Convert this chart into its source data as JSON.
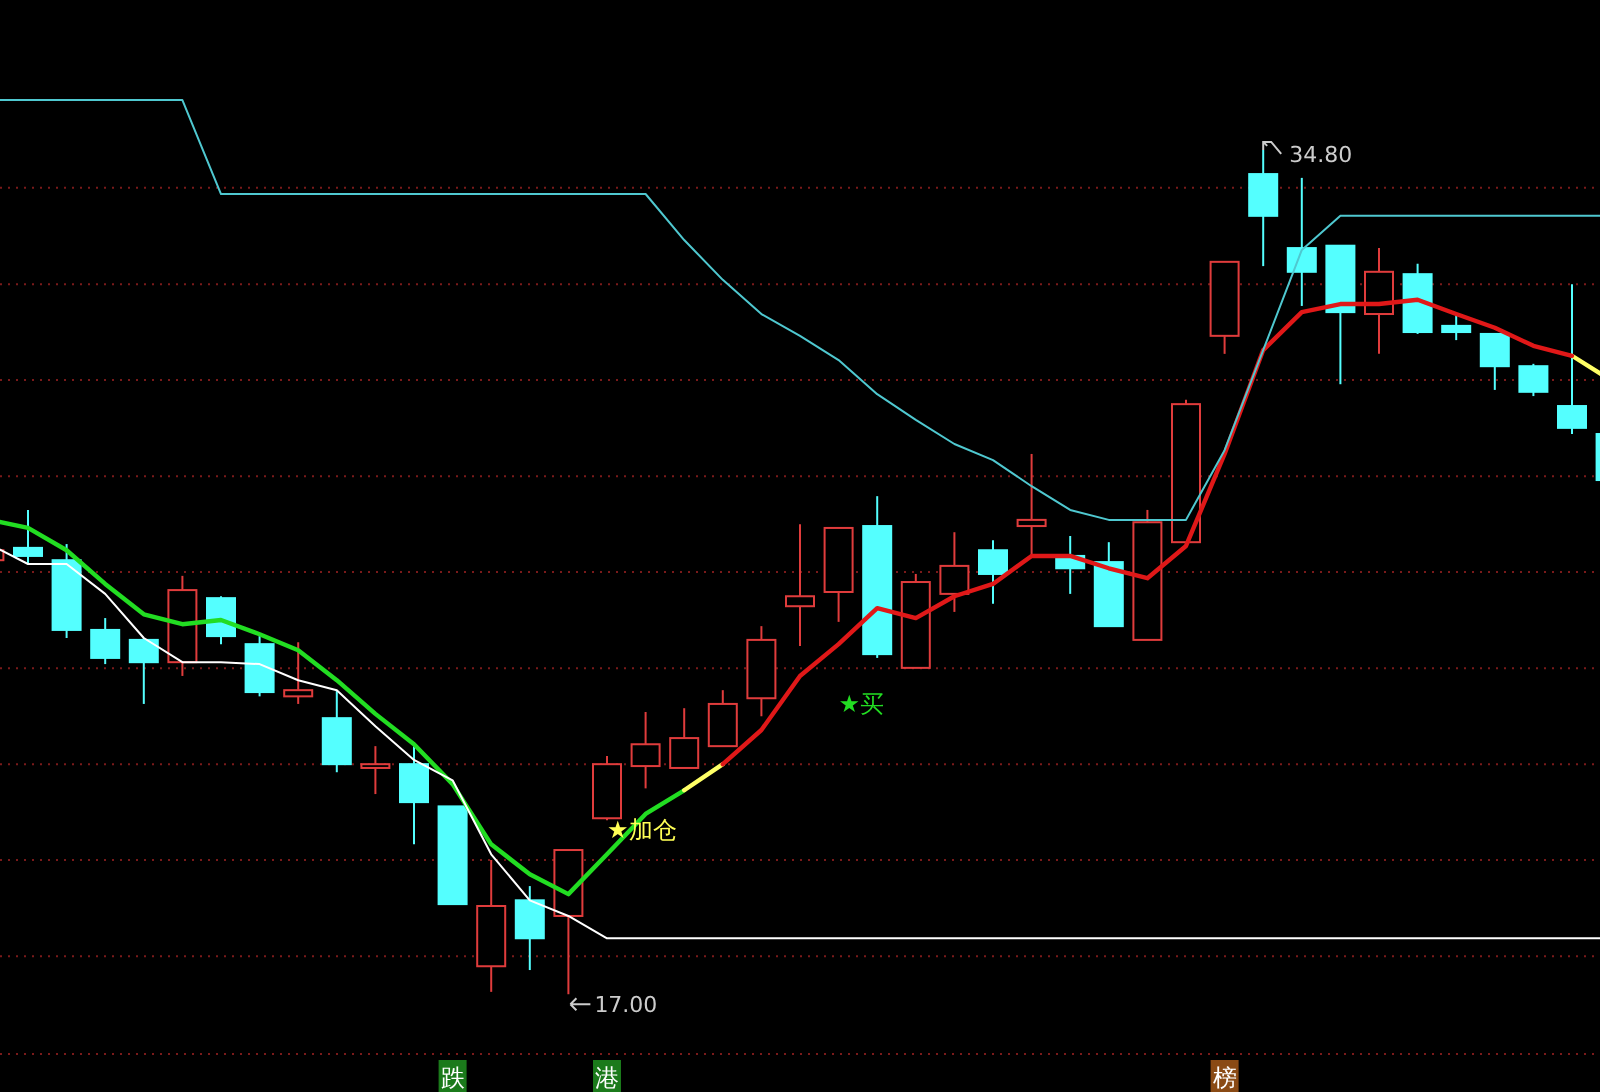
{
  "chart_data": {
    "type": "candlestick",
    "categories": [
      null,
      null,
      null,
      null,
      null,
      null,
      null,
      null,
      null,
      null,
      null,
      null,
      null,
      null,
      null,
      null,
      null,
      null,
      null,
      null,
      null,
      null,
      null,
      null,
      null,
      null,
      null,
      null,
      null,
      null,
      null,
      null,
      null,
      null,
      null,
      null,
      null,
      null,
      null,
      null,
      null,
      null,
      null
    ],
    "ohlc": [
      [
        26.15,
        26.36,
        26.15,
        26.36
      ],
      [
        26.41,
        27.21,
        26.07,
        26.24
      ],
      [
        26.15,
        26.49,
        24.51,
        24.68
      ],
      [
        24.68,
        24.93,
        23.96,
        24.09
      ],
      [
        24.47,
        24.51,
        23.12,
        24.0
      ],
      [
        24.0,
        25.82,
        23.71,
        25.52
      ],
      [
        25.35,
        25.39,
        24.38,
        24.55
      ],
      [
        24.38,
        24.55,
        23.28,
        23.37
      ],
      [
        23.28,
        24.42,
        23.12,
        23.41
      ],
      [
        22.82,
        23.41,
        21.68,
        21.85
      ],
      [
        21.77,
        22.23,
        21.22,
        21.85
      ],
      [
        21.85,
        22.23,
        20.16,
        21.05
      ],
      [
        20.96,
        20.96,
        18.9,
        18.9
      ],
      [
        17.59,
        19.83,
        17.05,
        18.86
      ],
      [
        18.98,
        19.28,
        17.51,
        18.18
      ],
      [
        18.65,
        20.04,
        17.0,
        20.04
      ],
      [
        20.71,
        22.02,
        20.67,
        21.85
      ],
      [
        21.81,
        22.95,
        21.34,
        22.27
      ],
      [
        21.77,
        23.03,
        21.77,
        22.4
      ],
      [
        22.23,
        23.41,
        22.23,
        23.12
      ],
      [
        23.24,
        24.76,
        22.86,
        24.47
      ],
      [
        25.18,
        26.91,
        24.34,
        25.39
      ],
      [
        25.48,
        26.83,
        24.85,
        26.83
      ],
      [
        26.87,
        27.5,
        24.09,
        24.17
      ],
      [
        23.88,
        25.86,
        23.88,
        25.69
      ],
      [
        25.44,
        26.74,
        25.06,
        26.03
      ],
      [
        26.36,
        26.57,
        25.23,
        25.86
      ],
      [
        26.87,
        28.39,
        26.24,
        27.0
      ],
      [
        26.24,
        26.66,
        25.44,
        25.98
      ],
      [
        26.11,
        26.53,
        24.76,
        24.76
      ],
      [
        24.47,
        27.21,
        24.47,
        26.95
      ],
      [
        26.53,
        29.53,
        26.53,
        29.44
      ],
      [
        30.88,
        32.44,
        30.5,
        32.44
      ],
      [
        34.29,
        34.8,
        32.35,
        33.41
      ],
      [
        32.73,
        34.21,
        31.51,
        32.23
      ],
      [
        32.78,
        32.78,
        29.86,
        31.38
      ],
      [
        31.34,
        32.73,
        30.5,
        32.23
      ],
      [
        32.18,
        32.4,
        30.92,
        30.96
      ],
      [
        31.09,
        31.34,
        30.79,
        30.96
      ],
      [
        30.92,
        30.92,
        29.74,
        30.24
      ],
      [
        30.24,
        30.29,
        29.61,
        29.7
      ],
      [
        29.4,
        31.97,
        28.81,
        28.94
      ],
      [
        28.81,
        28.81,
        27.84,
        27.84
      ]
    ],
    "series": [
      {
        "type": "line",
        "color": "#22dd22",
        "values": [
          27.0,
          26.83,
          26.36,
          25.65,
          25.01,
          24.8,
          24.89,
          24.59,
          24.25,
          23.62,
          22.91,
          22.27,
          21.43,
          20.16,
          19.53,
          19.11,
          19.95,
          20.8,
          21.3,
          null,
          null,
          null,
          null,
          null,
          null,
          null,
          null,
          null,
          null,
          null,
          null,
          null,
          null,
          null,
          null,
          null,
          null,
          null,
          null,
          null,
          null,
          null,
          null
        ]
      },
      {
        "type": "line",
        "color": "#ffff66",
        "values": [
          null,
          null,
          null,
          null,
          null,
          null,
          null,
          null,
          null,
          null,
          null,
          null,
          null,
          null,
          null,
          null,
          null,
          null,
          21.3,
          21.85,
          null,
          null,
          null,
          null,
          null,
          null,
          null,
          null,
          null,
          null,
          null,
          null,
          null,
          null,
          null,
          null,
          null,
          null,
          null,
          null,
          null,
          30.46,
          29.95
        ]
      },
      {
        "type": "line",
        "color": "#e01818",
        "values": [
          null,
          null,
          null,
          null,
          null,
          null,
          null,
          null,
          null,
          null,
          null,
          null,
          null,
          null,
          null,
          null,
          null,
          null,
          null,
          21.85,
          22.57,
          23.71,
          24.38,
          25.14,
          24.93,
          25.39,
          25.65,
          26.24,
          26.24,
          25.98,
          25.77,
          26.45,
          28.39,
          30.58,
          31.38,
          31.55,
          31.55,
          31.64,
          31.34,
          31.05,
          30.67,
          30.46,
          null
        ]
      },
      {
        "type": "line",
        "color": "#ffffff",
        "values": [
          26.49,
          26.07,
          26.07,
          25.44,
          24.51,
          24.0,
          24.0,
          23.96,
          23.62,
          23.41,
          22.65,
          21.94,
          21.51,
          19.95,
          18.98,
          18.65,
          18.18,
          18.18,
          18.18,
          18.18,
          18.18,
          18.18,
          18.18,
          18.18,
          18.18,
          18.18,
          18.18,
          18.18,
          18.18,
          18.18,
          18.18,
          18.18,
          18.18,
          18.18,
          18.18,
          18.18,
          18.18,
          18.18,
          18.18,
          18.18,
          18.18,
          18.18,
          18.18
        ]
      },
      {
        "type": "line",
        "color": "#4fc8d0",
        "values": [
          35.85,
          35.85,
          35.85,
          35.85,
          35.85,
          35.85,
          33.87,
          33.87,
          33.87,
          33.87,
          33.87,
          33.87,
          33.87,
          33.87,
          33.87,
          33.87,
          33.87,
          33.87,
          32.9,
          32.06,
          31.34,
          30.88,
          30.37,
          29.65,
          29.11,
          28.6,
          28.26,
          27.71,
          27.21,
          27.0,
          27.0,
          27.0,
          28.47,
          30.58,
          32.69,
          33.41,
          33.41,
          33.41,
          33.41,
          33.41,
          33.41,
          33.41,
          33.41
        ]
      }
    ],
    "ylim": [
      15.74,
      37.96
    ],
    "yticks": [
      {
        "value": 17.8,
        "label": null
      },
      {
        "value": 19.83,
        "label": null
      },
      {
        "value": 21.85,
        "label": null
      },
      {
        "value": 23.87,
        "label": null
      },
      {
        "value": 25.9,
        "label": null
      },
      {
        "value": 27.92,
        "label": null
      },
      {
        "value": 29.95,
        "label": null
      },
      {
        "value": 31.97,
        "label": null
      },
      {
        "value": 34.0,
        "label": null
      }
    ],
    "grid": "y",
    "annotations": [
      "34.80",
      "17.00",
      "★加仓",
      "★买",
      "跌",
      "港",
      "榜"
    ]
  }
}
